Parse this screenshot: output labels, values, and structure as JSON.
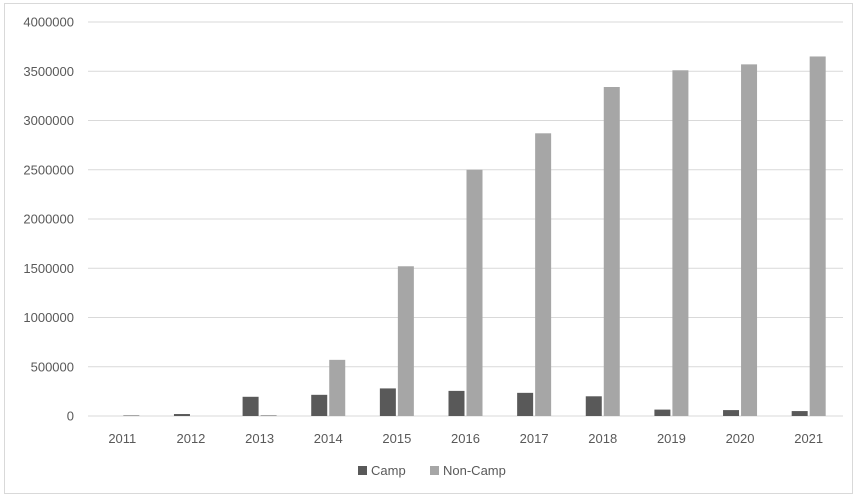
{
  "chart_data": {
    "type": "bar",
    "title": "",
    "xlabel": "",
    "ylabel": "",
    "categories": [
      "2011",
      "2012",
      "2013",
      "2014",
      "2015",
      "2016",
      "2017",
      "2018",
      "2019",
      "2020",
      "2021"
    ],
    "series": [
      {
        "name": "Camp",
        "color": "#595959",
        "values": [
          0,
          20000,
          195000,
          215000,
          280000,
          255000,
          235000,
          200000,
          65000,
          60000,
          50000
        ]
      },
      {
        "name": "Non-Camp",
        "color": "#a6a6a6",
        "values": [
          10000,
          0,
          10000,
          570000,
          1520000,
          2500000,
          2870000,
          3340000,
          3510000,
          3570000,
          3650000
        ]
      }
    ],
    "ylim": [
      0,
      4000000
    ],
    "yticks": [
      "0",
      "500000",
      "1000000",
      "1500000",
      "2000000",
      "2500000",
      "3000000",
      "3500000",
      "4000000"
    ],
    "grid": true,
    "legend_position": "bottom"
  }
}
